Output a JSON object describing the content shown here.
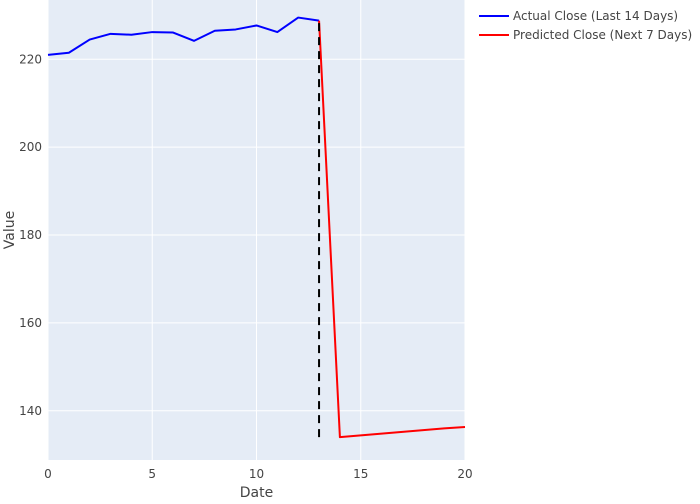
{
  "chart_data": {
    "type": "line",
    "title": "",
    "xlabel": "Date",
    "ylabel": "Value",
    "xlim": [
      0,
      20
    ],
    "ylim": [
      128.8,
      233.5
    ],
    "x_ticks": [
      0,
      5,
      10,
      15,
      20
    ],
    "y_ticks": [
      140,
      160,
      180,
      200,
      220
    ],
    "grid": true,
    "legend_position": "top-right-outside",
    "plot_background": "#E5ECF6",
    "series": [
      {
        "name": "Actual Close (Last 14 Days)",
        "color": "#0000FF",
        "x": [
          0,
          1,
          2,
          3,
          4,
          5,
          6,
          7,
          8,
          9,
          10,
          11,
          12,
          13
        ],
        "y": [
          221.0,
          221.5,
          224.5,
          225.8,
          225.6,
          226.2,
          226.1,
          224.2,
          226.5,
          226.8,
          227.7,
          226.2,
          229.5,
          228.8
        ]
      },
      {
        "name": "Predicted Close (Next 7 Days)",
        "color": "#FF0000",
        "x": [
          13,
          14,
          15,
          16,
          17,
          18,
          19,
          20
        ],
        "y": [
          228.8,
          134.0,
          134.4,
          134.8,
          135.2,
          135.6,
          136.0,
          136.3
        ]
      }
    ],
    "annotations": [
      {
        "type": "vertical-dashed-line",
        "x": 13,
        "y_from": 134.0,
        "y_to": 228.8,
        "color": "#000000"
      }
    ]
  }
}
